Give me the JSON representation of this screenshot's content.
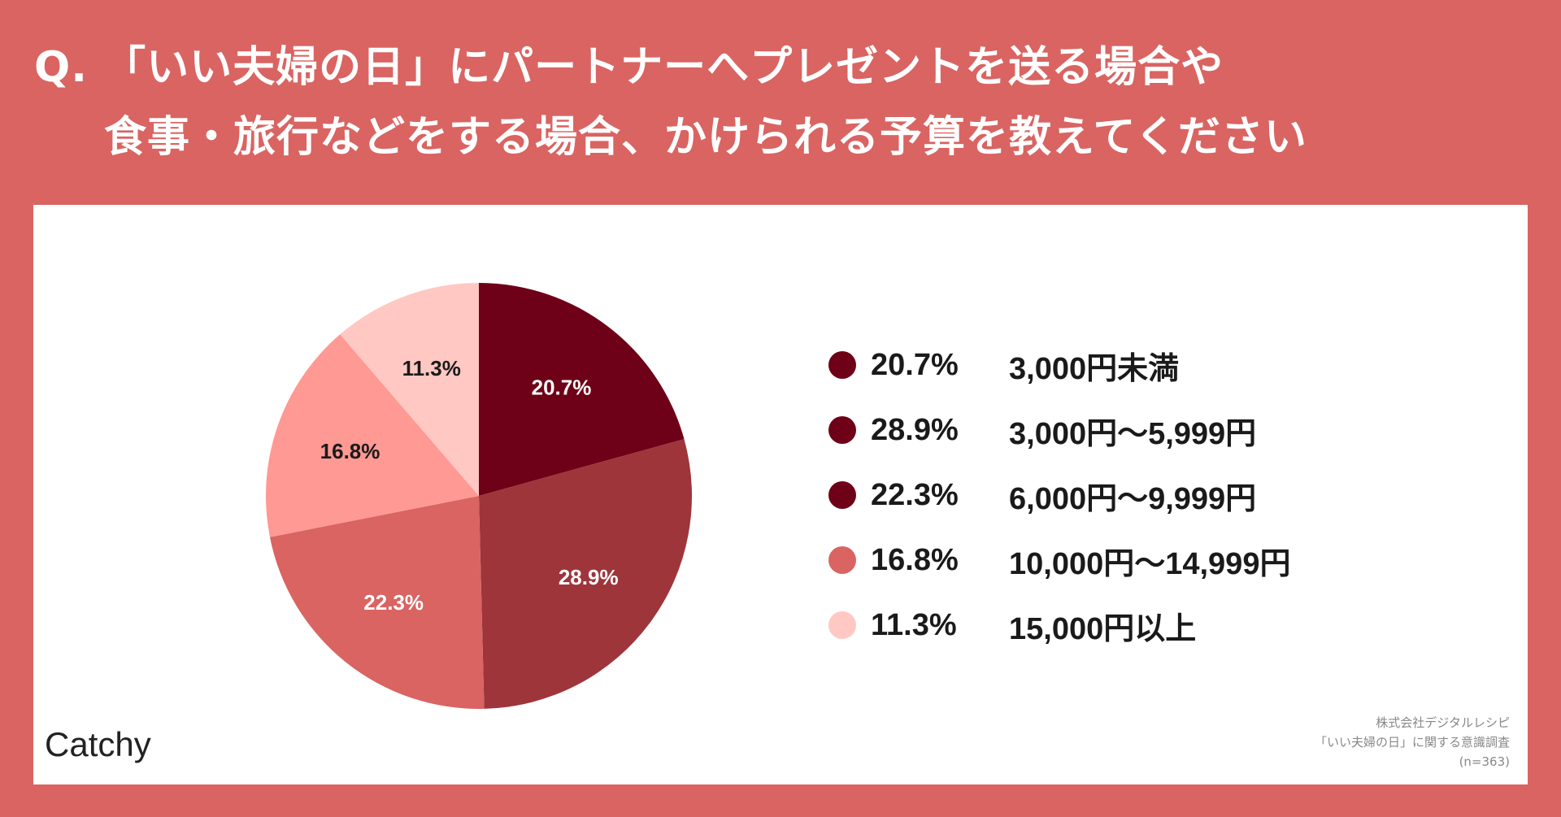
{
  "title": {
    "line1": "Q. 「いい夫婦の日」にパートナーへプレゼントを送る場合や",
    "line2": "食事・旅行などをする場合、かけられる予算を教えてください"
  },
  "chart_data": {
    "type": "pie",
    "slices": [
      {
        "label": "3,000円未満",
        "value": 20.7,
        "pct_label": "20.7%",
        "color": "#6e0017",
        "text_color": "#ffffff"
      },
      {
        "label": "3,000円〜5,999円",
        "value": 28.9,
        "pct_label": "28.9%",
        "color": "#9e353a",
        "text_color": "#ffffff"
      },
      {
        "label": "6,000円〜9,999円",
        "value": 22.3,
        "pct_label": "22.3%",
        "color": "#d96462",
        "text_color": "#ffffff"
      },
      {
        "label": "10,000円〜14,999円",
        "value": 16.8,
        "pct_label": "16.8%",
        "color": "#ff9993",
        "text_color": "#1a1a1a"
      },
      {
        "label": "15,000円以上",
        "value": 11.3,
        "pct_label": "11.3%",
        "color": "#ffc8c2",
        "text_color": "#1a1a1a"
      }
    ],
    "legend": [
      {
        "pct": "20.7%",
        "label": "3,000円未満",
        "color": "#6e0017"
      },
      {
        "pct": "28.9%",
        "label": "3,000円〜5,999円",
        "color": "#6e0017"
      },
      {
        "pct": "22.3%",
        "label": "6,000円〜9,999円",
        "color": "#6e0017"
      },
      {
        "pct": "16.8%",
        "label": "10,000円〜14,999円",
        "color": "#d96462"
      },
      {
        "pct": "11.3%",
        "label": "15,000円以上",
        "color": "#ffc8c2"
      }
    ],
    "legend_position": "right"
  },
  "brand": "Catchy",
  "source": {
    "line1": "株式会社デジタルレシピ",
    "line2": "「いい夫婦の日」に関する意識調査",
    "line3": "(n=363)"
  }
}
